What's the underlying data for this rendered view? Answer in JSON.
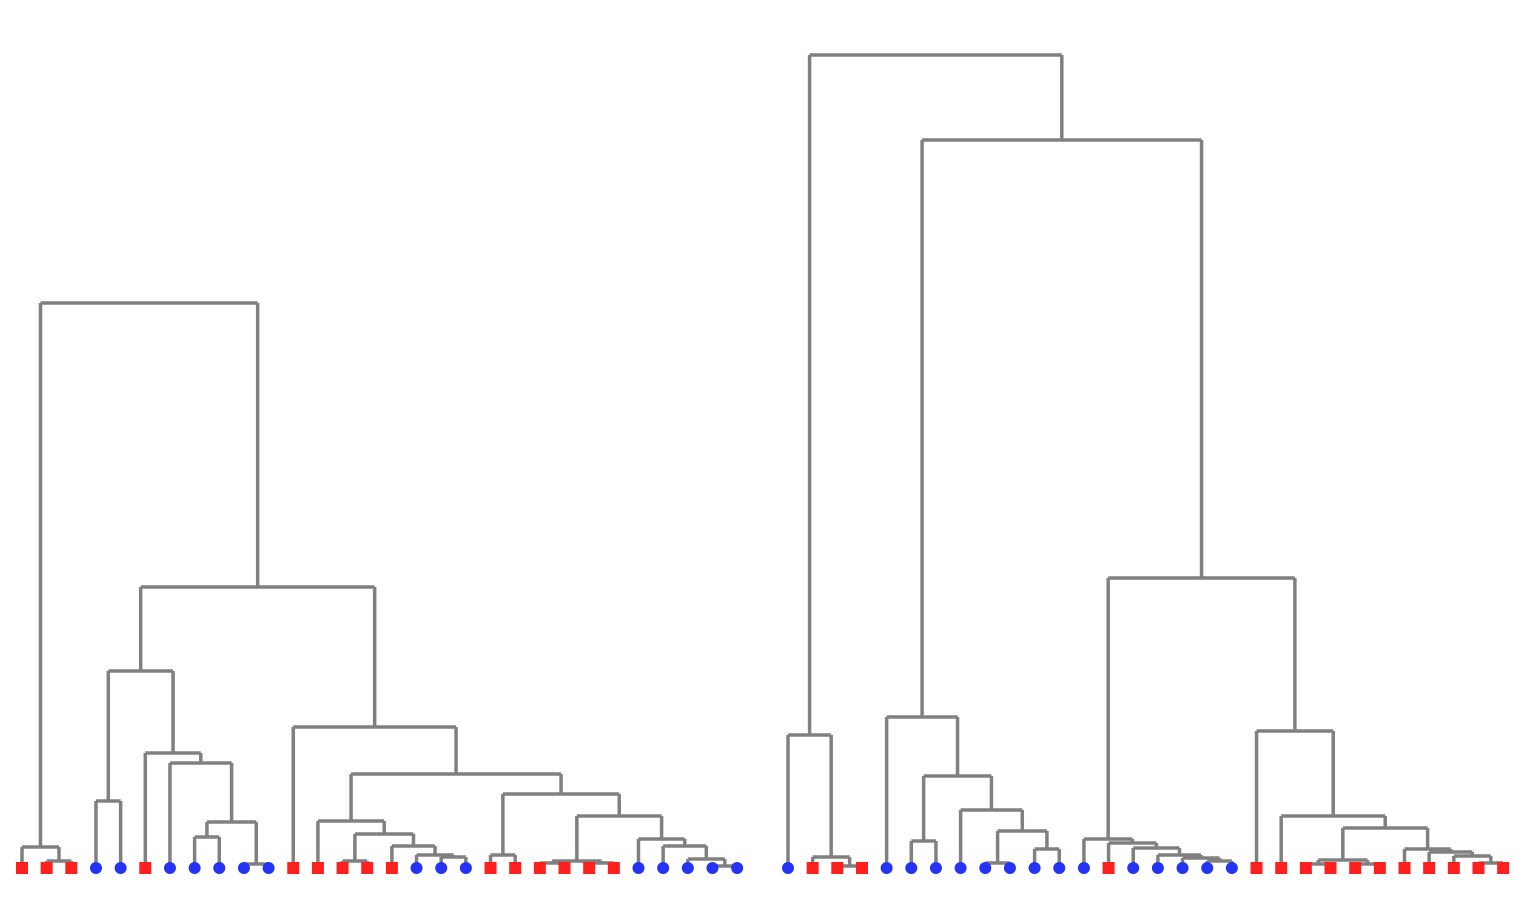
{
  "marker_colors": {
    "square": "#ff2020",
    "circle": "#2433f5"
  },
  "trees": [
    {
      "root": {
        "height": 565,
        "children": [
          {
            "height": 21,
            "children": [
              "square",
              {
                "height": 7,
                "children": [
                  "square",
                  "square"
                ]
              }
            ]
          },
          {
            "height": 281,
            "children": [
              {
                "height": 197,
                "children": [
                  {
                    "height": 67,
                    "children": [
                      "circle",
                      "circle"
                    ]
                  },
                  {
                    "height": 115,
                    "children": [
                      "square",
                      {
                        "height": 105,
                        "children": [
                          "circle",
                          {
                            "height": 46,
                            "children": [
                              {
                                "height": 31,
                                "children": [
                                  "circle",
                                  "circle"
                                ]
                              },
                              {
                                "height": 4,
                                "children": [
                                  "circle",
                                  "circle"
                                ]
                              }
                            ]
                          }
                        ]
                      }
                    ]
                  }
                ]
              },
              {
                "height": 141,
                "children": [
                  "square",
                  {
                    "height": 94,
                    "children": [
                      {
                        "height": 47,
                        "children": [
                          "square",
                          {
                            "height": 34,
                            "children": [
                              {
                                "height": 7,
                                "children": [
                                  "square",
                                  "square"
                                ]
                              },
                              {
                                "height": 22,
                                "children": [
                                  "square",
                                  {
                                    "height": 13,
                                    "children": [
                                      "circle",
                                      {
                                        "height": 11,
                                        "children": [
                                          "circle",
                                          "circle"
                                        ]
                                      }
                                    ]
                                  }
                                ]
                              }
                            ]
                          }
                        ]
                      },
                      {
                        "height": 74,
                        "children": [
                          {
                            "height": 13,
                            "children": [
                              "square",
                              "square"
                            ]
                          },
                          {
                            "height": 52,
                            "children": [
                              {
                                "height": 7,
                                "children": [
                                  {
                                    "height": 5,
                                    "children": [
                                      "square",
                                      "square"
                                    ]
                                  },
                                  {
                                    "height": 5,
                                    "children": [
                                      "square",
                                      "square"
                                    ]
                                  }
                                ]
                              },
                              {
                                "height": 29,
                                "children": [
                                  "circle",
                                  {
                                    "height": 22,
                                    "children": [
                                      "circle",
                                      {
                                        "height": 9,
                                        "children": [
                                          "circle",
                                          {
                                            "height": 2,
                                            "children": [
                                              "circle",
                                              "circle"
                                            ]
                                          }
                                        ]
                                      }
                                    ]
                                  }
                                ]
                              }
                            ]
                          }
                        ]
                      }
                    ]
                  }
                ]
              }
            ]
          }
        ]
      }
    },
    {
      "root": {
        "height": 813,
        "children": [
          {
            "height": 133,
            "children": [
              "circle",
              {
                "height": 11,
                "children": [
                  "square",
                  {
                    "height": 2,
                    "children": [
                      "square",
                      "square"
                    ]
                  }
                ]
              }
            ]
          },
          {
            "height": 728,
            "children": [
              {
                "height": 151,
                "children": [
                  "circle",
                  {
                    "height": 92,
                    "children": [
                      {
                        "height": 27,
                        "children": [
                          "circle",
                          "circle"
                        ]
                      },
                      {
                        "height": 58,
                        "children": [
                          "circle",
                          {
                            "height": 37,
                            "children": [
                              {
                                "height": 5,
                                "children": [
                                  "circle",
                                  "circle"
                                ]
                              },
                              {
                                "height": 19,
                                "children": [
                                  "circle",
                                  "circle"
                                ]
                              }
                            ]
                          }
                        ]
                      }
                    ]
                  }
                ]
              },
              {
                "height": 290,
                "children": [
                  {
                    "height": 29,
                    "children": [
                      "circle",
                      {
                        "height": 25,
                        "children": [
                          "square",
                          {
                            "height": 20,
                            "children": [
                              "circle",
                              {
                                "height": 13,
                                "children": [
                                  "circle",
                                  {
                                    "height": 10,
                                    "children": [
                                      "circle",
                                      {
                                        "height": 7,
                                        "children": [
                                          "circle",
                                          "circle"
                                        ]
                                      }
                                    ]
                                  }
                                ]
                              }
                            ]
                          }
                        ]
                      }
                    ]
                  },
                  {
                    "height": 137,
                    "children": [
                      "square",
                      {
                        "height": 52,
                        "children": [
                          "square",
                          {
                            "height": 40,
                            "children": [
                              {
                                "height": 8,
                                "children": [
                                  {
                                    "height": 4,
                                    "children": [
                                      "square",
                                      "square"
                                    ]
                                  },
                                  {
                                    "height": 4,
                                    "children": [
                                      "square",
                                      "square"
                                    ]
                                  }
                                ]
                              },
                              {
                                "height": 19,
                                "children": [
                                  "square",
                                  {
                                    "height": 16,
                                    "children": [
                                      "square",
                                      {
                                        "height": 12,
                                        "children": [
                                          "square",
                                          {
                                            "height": 5,
                                            "children": [
                                              "square",
                                              "square"
                                            ]
                                          }
                                        ]
                                      }
                                    ]
                                  }
                                ]
                              }
                            ]
                          }
                        ]
                      }
                    ]
                  }
                ]
              }
            ]
          }
        ]
      }
    }
  ]
}
